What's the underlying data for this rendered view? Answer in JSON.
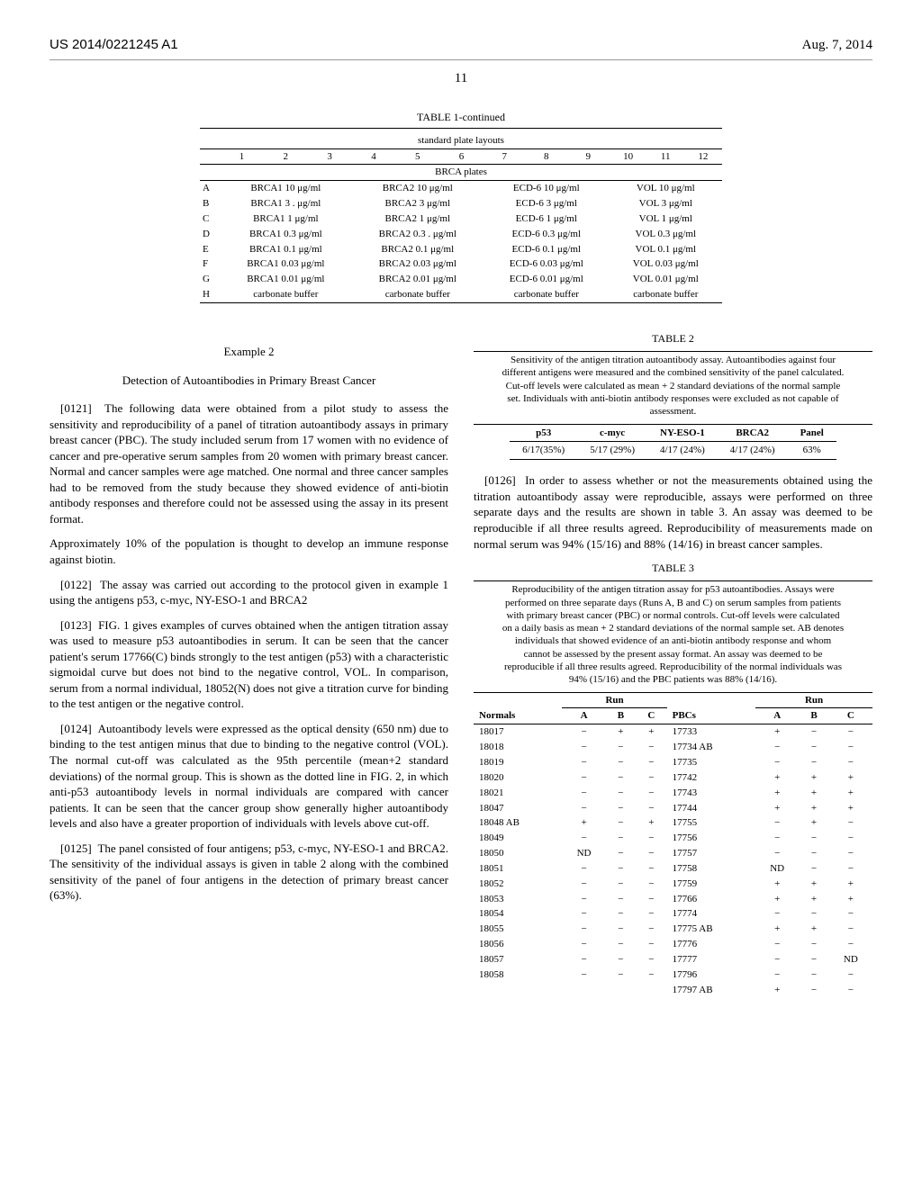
{
  "header": {
    "patent_id": "US 2014/0221245 A1",
    "date": "Aug. 7, 2014",
    "page_number": "11"
  },
  "table1": {
    "caption": "TABLE 1-continued",
    "subtitle": "standard plate layouts",
    "col_numbers": [
      "1",
      "2",
      "3",
      "4",
      "5",
      "6",
      "7",
      "8",
      "9",
      "10",
      "11",
      "12"
    ],
    "panel_title": "BRCA plates",
    "row_labels": [
      "A",
      "B",
      "C",
      "D",
      "E",
      "F",
      "G",
      "H"
    ],
    "groups": [
      [
        "BRCA1 10 μg/ml",
        "BRCA1 3 . μg/ml",
        "BRCA1 1 μg/ml",
        "BRCA1 0.3 μg/ml",
        "BRCA1 0.1 μg/ml",
        "BRCA1 0.03 μg/ml",
        "BRCA1 0.01 μg/ml",
        "carbonate buffer"
      ],
      [
        "BRCA2 10 μg/ml",
        "BRCA2 3 μg/ml",
        "BRCA2 1 μg/ml",
        "BRCA2 0.3 . μg/ml",
        "BRCA2 0.1 μg/ml",
        "BRCA2 0.03 μg/ml",
        "BRCA2 0.01 μg/ml",
        "carbonate buffer"
      ],
      [
        "ECD-6 10 μg/ml",
        "ECD-6 3 μg/ml",
        "ECD-6 1 μg/ml",
        "ECD-6 0.3 μg/ml",
        "ECD-6 0.1 μg/ml",
        "ECD-6 0.03 μg/ml",
        "ECD-6 0.01 μg/ml",
        "carbonate buffer"
      ],
      [
        "VOL 10 μg/ml",
        "VOL 3 μg/ml",
        "VOL 1 μg/ml",
        "VOL 0.3 μg/ml",
        "VOL 0.1 μg/ml",
        "VOL 0.03 μg/ml",
        "VOL 0.01 μg/ml",
        "carbonate buffer"
      ]
    ]
  },
  "example2": {
    "label": "Example 2",
    "title": "Detection of Autoantibodies in Primary Breast Cancer"
  },
  "paras": {
    "p0121_num": "[0121]",
    "p0121": "The following data were obtained from a pilot study to assess the sensitivity and reproducibility of a panel of titration autoantibody assays in primary breast cancer (PBC). The study included serum from 17 women with no evidence of cancer and pre-operative serum samples from 20 women with primary breast cancer. Normal and cancer samples were age matched. One normal and three cancer samples had to be removed from the study because they showed evidence of anti-biotin antibody responses and therefore could not be assessed using the assay in its present format.",
    "note": "Approximately 10% of the population is thought to develop an immune response against biotin.",
    "p0122_num": "[0122]",
    "p0122": "The assay was carried out according to the protocol given in example 1 using the antigens p53, c-myc, NY-ESO-1 and BRCA2",
    "p0123_num": "[0123]",
    "p0123": "FIG. 1 gives examples of curves obtained when the antigen titration assay was used to measure p53 autoantibodies in serum. It can be seen that the cancer patient's serum 17766(C) binds strongly to the test antigen (p53) with a characteristic sigmoidal curve but does not bind to the negative control, VOL. In comparison, serum from a normal individual, 18052(N) does not give a titration curve for binding to the test antigen or the negative control.",
    "p0124_num": "[0124]",
    "p0124": "Autoantibody levels were expressed as the optical density (650 nm) due to binding to the test antigen minus that due to binding to the negative control (VOL). The normal cut-off was calculated as the 95th percentile (mean+2 standard deviations) of the normal group. This is shown as the dotted line in FIG. 2, in which anti-p53 autoantibody levels in normal individuals are compared with cancer patients. It can be seen that the cancer group show generally higher autoantibody levels and also have a greater proportion of individuals with levels above cut-off.",
    "p0125_num": "[0125]",
    "p0125": "The panel consisted of four antigens; p53, c-myc, NY-ESO-1 and BRCA2. The sensitivity of the individual assays is given in table 2 along with the combined sensitivity of the panel of four antigens in the detection of primary breast cancer (63%).",
    "p0126_num": "[0126]",
    "p0126": "In order to assess whether or not the measurements obtained using the titration autoantibody assay were reproducible, assays were performed on three separate days and the results are shown in table 3. An assay was deemed to be reproducible if all three results agreed. Reproducibility of measurements made on normal serum was 94% (15/16) and 88% (14/16) in breast cancer samples."
  },
  "table2": {
    "label": "TABLE 2",
    "caption": "Sensitivity of the antigen titration autoantibody assay. Autoantibodies against four different antigens were measured and the combined sensitivity of the panel calculated. Cut-off levels were calculated as mean + 2 standard deviations of the normal sample set. Individuals with anti-biotin antibody responses were excluded as not capable of assessment.",
    "headers": [
      "p53",
      "c-myc",
      "NY-ESO-1",
      "BRCA2",
      "Panel"
    ],
    "row": [
      "6/17(35%)",
      "5/17 (29%)",
      "4/17 (24%)",
      "4/17 (24%)",
      "63%"
    ]
  },
  "table3": {
    "label": "TABLE 3",
    "caption": "Reproducibility of the antigen titration assay for p53 autoantibodies. Assays were performed on three separate days (Runs A, B and C) on serum samples from patients with primary breast cancer (PBC) or normal controls. Cut-off levels were calculated on a daily basis as mean + 2 standard deviations of the normal sample set. AB denotes individuals that showed evidence of an anti-biotin antibody response and whom cannot be assessed by the present assay format. An assay was deemed to be reproducible if all three results agreed. Reproducibility of the normal individuals was 94% (15/16) and the PBC patients was 88% (14/16).",
    "group_headers_left": "Run",
    "group_headers_right": "Run",
    "sub_headers": [
      "Normals",
      "A",
      "B",
      "C",
      "PBCs",
      "A",
      "B",
      "C"
    ],
    "rows": [
      [
        "18017",
        "−",
        "+",
        "+",
        "17733",
        "+",
        "−",
        "−"
      ],
      [
        "18018",
        "−",
        "−",
        "−",
        "17734 AB",
        "−",
        "−",
        "−"
      ],
      [
        "18019",
        "−",
        "−",
        "−",
        "17735",
        "−",
        "−",
        "−"
      ],
      [
        "18020",
        "−",
        "−",
        "−",
        "17742",
        "+",
        "+",
        "+"
      ],
      [
        "18021",
        "−",
        "−",
        "−",
        "17743",
        "+",
        "+",
        "+"
      ],
      [
        "18047",
        "−",
        "−",
        "−",
        "17744",
        "+",
        "+",
        "+"
      ],
      [
        "18048 AB",
        "+",
        "−",
        "+",
        "17755",
        "−",
        "+",
        "−"
      ],
      [
        "18049",
        "−",
        "−",
        "−",
        "17756",
        "−",
        "−",
        "−"
      ],
      [
        "18050",
        "ND",
        "−",
        "−",
        "17757",
        "−",
        "−",
        "−"
      ],
      [
        "18051",
        "−",
        "−",
        "−",
        "17758",
        "ND",
        "−",
        "−"
      ],
      [
        "18052",
        "−",
        "−",
        "−",
        "17759",
        "+",
        "+",
        "+"
      ],
      [
        "18053",
        "−",
        "−",
        "−",
        "17766",
        "+",
        "+",
        "+"
      ],
      [
        "18054",
        "−",
        "−",
        "−",
        "17774",
        "−",
        "−",
        "−"
      ],
      [
        "18055",
        "−",
        "−",
        "−",
        "17775 AB",
        "+",
        "+",
        "−"
      ],
      [
        "18056",
        "−",
        "−",
        "−",
        "17776",
        "−",
        "−",
        "−"
      ],
      [
        "18057",
        "−",
        "−",
        "−",
        "17777",
        "−",
        "−",
        "ND"
      ],
      [
        "18058",
        "−",
        "−",
        "−",
        "17796",
        "−",
        "−",
        "−"
      ],
      [
        "",
        "",
        "",
        "",
        "17797 AB",
        "+",
        "−",
        "−"
      ]
    ]
  }
}
